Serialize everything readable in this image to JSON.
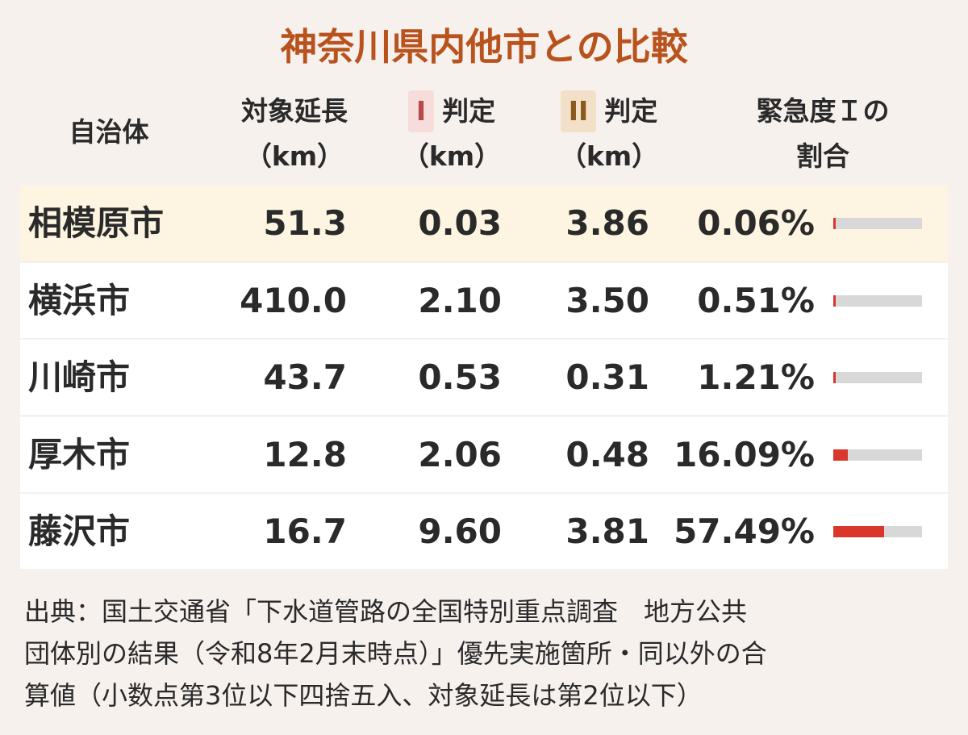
{
  "header": {
    "title": "神奈川県内他市との比較"
  },
  "table": {
    "columns": [
      {
        "lines": [
          "自治体"
        ]
      },
      {
        "lines": [
          "対象延長",
          "（km）"
        ]
      },
      {
        "marker": "I",
        "lines": [
          "判定",
          "（km）"
        ]
      },
      {
        "marker": "II",
        "lines": [
          "判定",
          "（km）"
        ]
      },
      {
        "lines": [
          "緊急度Ｉの",
          "割合"
        ]
      }
    ],
    "highlight_row": 0,
    "rows": [
      [
        "相模原市",
        "51.3",
        "0.03",
        "3.86",
        {
          "value": 0.06,
          "label": "0.06%"
        }
      ],
      [
        "横浜市",
        "410.0",
        "2.10",
        "3.50",
        {
          "value": 0.51,
          "label": "0.51%"
        }
      ],
      [
        "川崎市",
        "43.7",
        "0.53",
        "0.31",
        {
          "value": 1.21,
          "label": "1.21%"
        }
      ],
      [
        "厚木市",
        "12.8",
        "2.06",
        "0.48",
        {
          "value": 16.09,
          "label": "16.09%"
        }
      ],
      [
        "藤沢市",
        "16.7",
        "9.60",
        "3.81",
        {
          "value": 57.49,
          "label": "57.49%"
        }
      ]
    ]
  },
  "footnote": {
    "lines": [
      "出典：国土交通省「下水道管路の全国特別重点調査　地方公共",
      "団体別の結果（令和8年2月末時点）」優先実施箇所・同以外の合",
      "算値（小数点第3位以下四捨五入、対象延長は第2位以下）"
    ]
  }
}
